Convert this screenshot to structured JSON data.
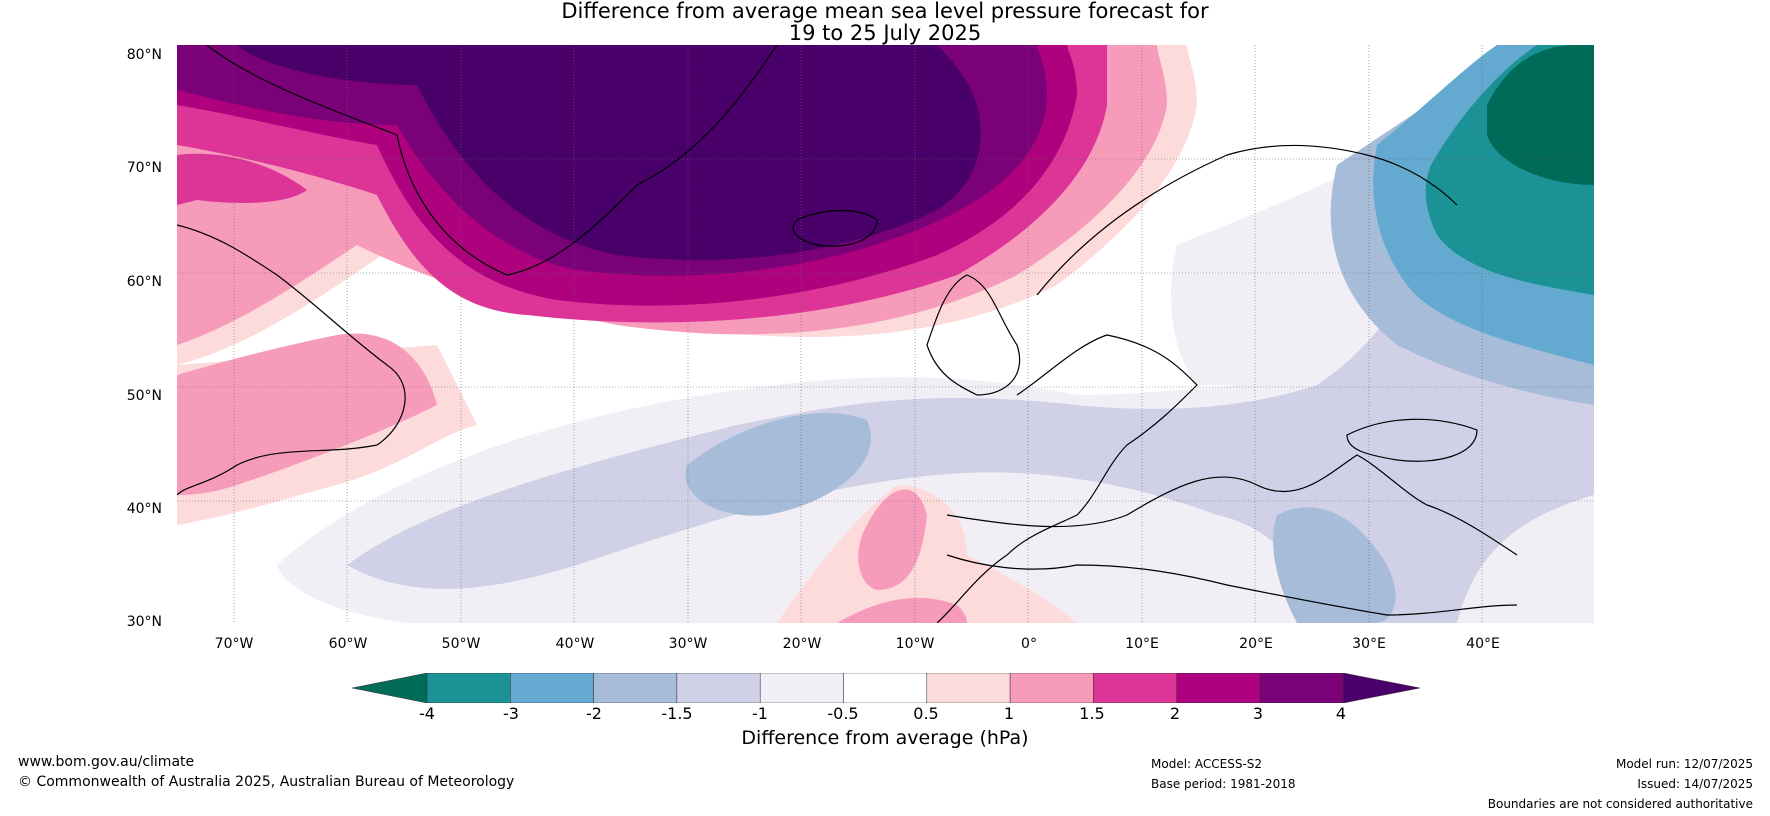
{
  "title_line1": "Difference from average mean sea level pressure forecast for",
  "title_line2": "19 to 25 July 2025",
  "lat_labels": [
    "80°N",
    "70°N",
    "60°N",
    "50°N",
    "40°N",
    "30°N"
  ],
  "lon_labels": [
    "70°W",
    "60°W",
    "50°W",
    "40°W",
    "30°W",
    "20°W",
    "10°W",
    "0°",
    "10°E",
    "20°E",
    "30°E",
    "40°E"
  ],
  "colorbar": {
    "ticks": [
      "-4",
      "-3",
      "-2",
      "-1.5",
      "-1",
      "-0.5",
      "0.5",
      "1",
      "1.5",
      "2",
      "3",
      "4"
    ],
    "colors": [
      "#006b58",
      "#1b9296",
      "#64a9cf",
      "#a6bcd9",
      "#d0d1e6",
      "#f2eef6",
      "#ffffff",
      "#fddbdb",
      "#f69cba",
      "#dd3497",
      "#ae017e",
      "#7a0177",
      "#49006a"
    ],
    "title": "Difference from average (hPa)"
  },
  "footer": {
    "website": "www.bom.gov.au/climate",
    "copyright": "© Commonwealth of Australia 2025, Australian Bureau of Meteorology",
    "model": "Model: ACCESS-S2",
    "base_period": "Base period: 1981-2018",
    "model_run": "Model run: 12/07/2025",
    "issued": "Issued: 14/07/2025",
    "disclaimer": "Boundaries are not considered authoritative"
  }
}
